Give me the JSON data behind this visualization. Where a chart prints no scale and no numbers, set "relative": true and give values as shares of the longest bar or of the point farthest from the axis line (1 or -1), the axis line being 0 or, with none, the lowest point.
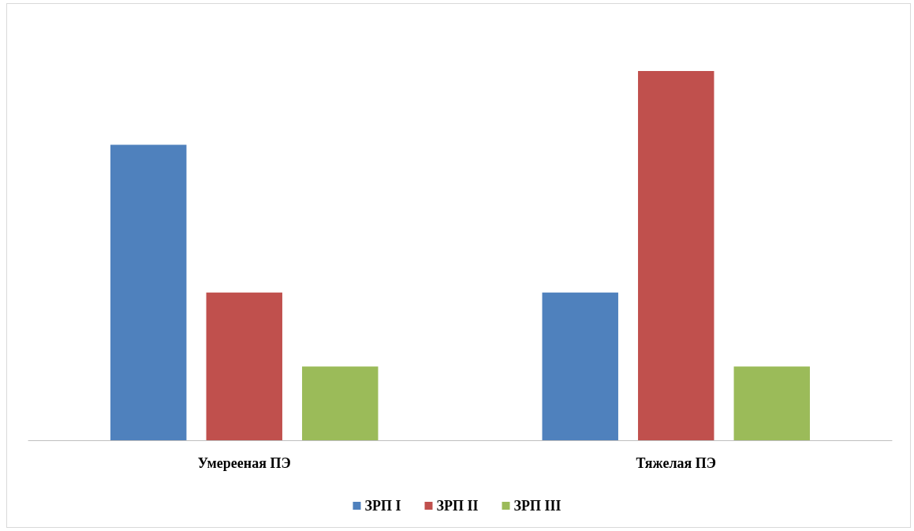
{
  "chart_data": {
    "type": "bar",
    "relative": true,
    "categories": [
      "Умерееная ПЭ",
      "Тяжелая ПЭ"
    ],
    "series": [
      {
        "name": "ЗРП I",
        "color": "#4f81bd",
        "values": [
          0.8,
          0.4
        ]
      },
      {
        "name": "ЗРП II",
        "color": "#c0504d",
        "values": [
          0.4,
          1
        ]
      },
      {
        "name": "ЗРП III",
        "color": "#9bbb59",
        "values": [
          0.2,
          0.2
        ]
      }
    ],
    "legend": "bottom"
  }
}
